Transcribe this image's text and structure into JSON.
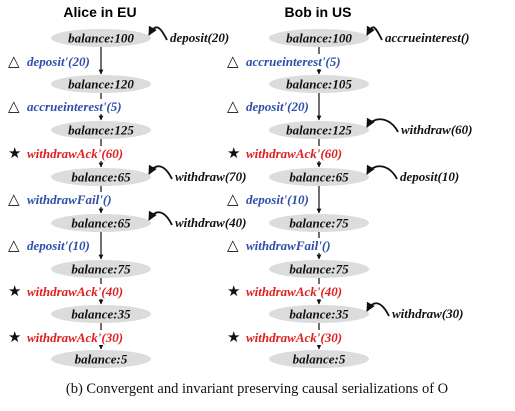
{
  "caption": "(b) Convergent and invariant preserving causal serializations of O",
  "colors": {
    "local_op": "#2f4fa8",
    "remote_ack": "#e02020",
    "external": "#111111",
    "balance_bg": "#dcdcdc"
  },
  "columns": [
    {
      "title": "Alice in EU",
      "balances": [
        "balance:100",
        "balance:120",
        "balance:125",
        "balance:65",
        "balance:65",
        "balance:75",
        "balance:35",
        "balance:5"
      ],
      "ops": [
        {
          "marker": "triangle",
          "label": "deposit'(20)",
          "color": "blue"
        },
        {
          "marker": "triangle",
          "label": "accrueinterest'(5)",
          "color": "blue"
        },
        {
          "marker": "star",
          "label": "withdrawAck'(60)",
          "color": "red"
        },
        {
          "marker": "triangle",
          "label": "withdrawFail'()",
          "color": "blue"
        },
        {
          "marker": "triangle",
          "label": "deposit'(10)",
          "color": "blue"
        },
        {
          "marker": "star",
          "label": "withdrawAck'(40)",
          "color": "red"
        },
        {
          "marker": "star",
          "label": "withdrawAck'(30)",
          "color": "red"
        }
      ],
      "externals": [
        {
          "at_balance": 0,
          "label": "deposit(20)"
        },
        {
          "at_balance": 3,
          "label": "withdraw(70)"
        },
        {
          "at_balance": 4,
          "label": "withdraw(40)"
        }
      ]
    },
    {
      "title": "Bob in US",
      "balances": [
        "balance:100",
        "balance:105",
        "balance:125",
        "balance:65",
        "balance:75",
        "balance:75",
        "balance:35",
        "balance:5"
      ],
      "ops": [
        {
          "marker": "triangle",
          "label": "accrueinterest'(5)",
          "color": "blue"
        },
        {
          "marker": "triangle",
          "label": "deposit'(20)",
          "color": "blue"
        },
        {
          "marker": "star",
          "label": "withdrawAck'(60)",
          "color": "red"
        },
        {
          "marker": "triangle",
          "label": "deposit'(10)",
          "color": "blue"
        },
        {
          "marker": "triangle",
          "label": "withdrawFail'()",
          "color": "blue"
        },
        {
          "marker": "star",
          "label": "withdrawAck'(40)",
          "color": "red"
        },
        {
          "marker": "star",
          "label": "withdrawAck'(30)",
          "color": "red"
        }
      ],
      "externals": [
        {
          "at_balance": 0,
          "label": "accrueinterest()"
        },
        {
          "at_balance": 2,
          "label": "withdraw(60)"
        },
        {
          "at_balance": 3,
          "label": "deposit(10)"
        },
        {
          "at_balance": 6,
          "label": "withdraw(30)"
        }
      ]
    }
  ],
  "markers": {
    "triangle": "△",
    "star": "★"
  }
}
